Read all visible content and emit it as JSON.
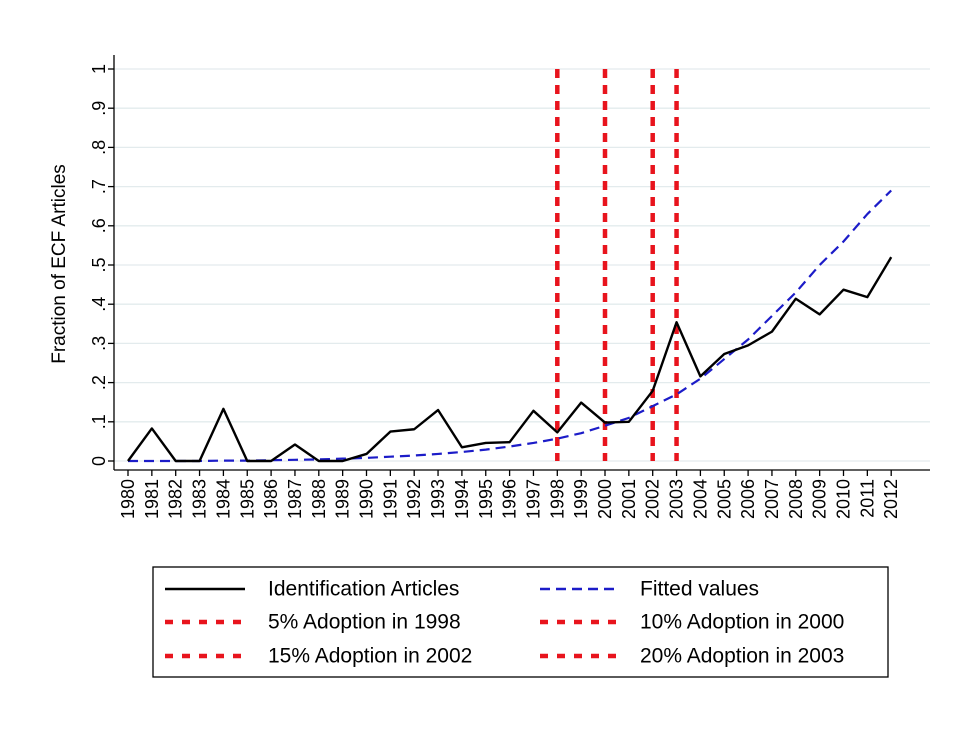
{
  "chart_data": {
    "type": "line",
    "ylabel": "Fraction of ECF Articles",
    "xlabel": "",
    "ylim": [
      0,
      1
    ],
    "y_ticks": [
      "0",
      ".1",
      ".2",
      ".3",
      ".4",
      ".5",
      ".6",
      ".7",
      ".8",
      ".9",
      "1"
    ],
    "y_tick_values": [
      0,
      0.1,
      0.2,
      0.3,
      0.4,
      0.5,
      0.6,
      0.7,
      0.8,
      0.9,
      1
    ],
    "x": [
      1980,
      1981,
      1982,
      1983,
      1984,
      1985,
      1986,
      1987,
      1988,
      1989,
      1990,
      1991,
      1992,
      1993,
      1994,
      1995,
      1996,
      1997,
      1998,
      1999,
      2000,
      2001,
      2002,
      2003,
      2004,
      2005,
      2006,
      2007,
      2008,
      2009,
      2010,
      2011,
      2012
    ],
    "x_tick_labels": [
      "1980",
      "1981",
      "1982",
      "1983",
      "1984",
      "1985",
      "1986",
      "1987",
      "1988",
      "1989",
      "1990",
      "1991",
      "1992",
      "1993",
      "1994",
      "1995",
      "1996",
      "1997",
      "1998",
      "1999",
      "2000",
      "2001",
      "2002",
      "2003",
      "2004",
      "2005",
      "2006",
      "2007",
      "2008",
      "2009",
      "2010",
      "2011",
      "2012"
    ],
    "grid": true,
    "series": [
      {
        "name": "Identification Articles",
        "color": "#000000",
        "style": "solid",
        "values": [
          0.0,
          0.083,
          0.0,
          0.0,
          0.133,
          0.0,
          0.0,
          0.042,
          0.0,
          0.0,
          0.018,
          0.075,
          0.081,
          0.13,
          0.035,
          0.046,
          0.048,
          0.128,
          0.073,
          0.149,
          0.098,
          0.1,
          0.179,
          0.354,
          0.216,
          0.273,
          0.295,
          0.33,
          0.414,
          0.374,
          0.437,
          0.418,
          0.52
        ]
      },
      {
        "name": "Fitted values",
        "color": "#1c1cc8",
        "style": "dashed",
        "values": [
          0.0,
          0.0,
          0.0,
          0.0,
          0.001,
          0.001,
          0.002,
          0.003,
          0.004,
          0.006,
          0.008,
          0.011,
          0.014,
          0.018,
          0.023,
          0.029,
          0.037,
          0.046,
          0.057,
          0.071,
          0.09,
          0.11,
          0.14,
          0.17,
          0.21,
          0.26,
          0.31,
          0.37,
          0.43,
          0.5,
          0.56,
          0.63,
          0.69
        ]
      }
    ],
    "reference_lines": [
      {
        "name": "5% Adoption in 1998",
        "x": 1998,
        "color": "#e8141d",
        "style": "dotted"
      },
      {
        "name": "10% Adoption in 2000",
        "x": 2000,
        "color": "#e8141d",
        "style": "dotted"
      },
      {
        "name": "15% Adoption in 2002",
        "x": 2002,
        "color": "#e8141d",
        "style": "dotted"
      },
      {
        "name": "20% Adoption in 2003",
        "x": 2003,
        "color": "#e8141d",
        "style": "dotted"
      }
    ],
    "legend": {
      "placement": "bottom",
      "items": [
        {
          "label": "Identification Articles",
          "color": "#000000",
          "style": "solid"
        },
        {
          "label": "Fitted values",
          "color": "#1c1cc8",
          "style": "dashed"
        },
        {
          "label": "5% Adoption in 1998",
          "color": "#e8141d",
          "style": "dotted"
        },
        {
          "label": "10% Adoption in 2000",
          "color": "#e8141d",
          "style": "dotted"
        },
        {
          "label": "15% Adoption in 2002",
          "color": "#e8141d",
          "style": "dotted"
        },
        {
          "label": "20% Adoption in 2003",
          "color": "#e8141d",
          "style": "dotted"
        }
      ]
    }
  }
}
